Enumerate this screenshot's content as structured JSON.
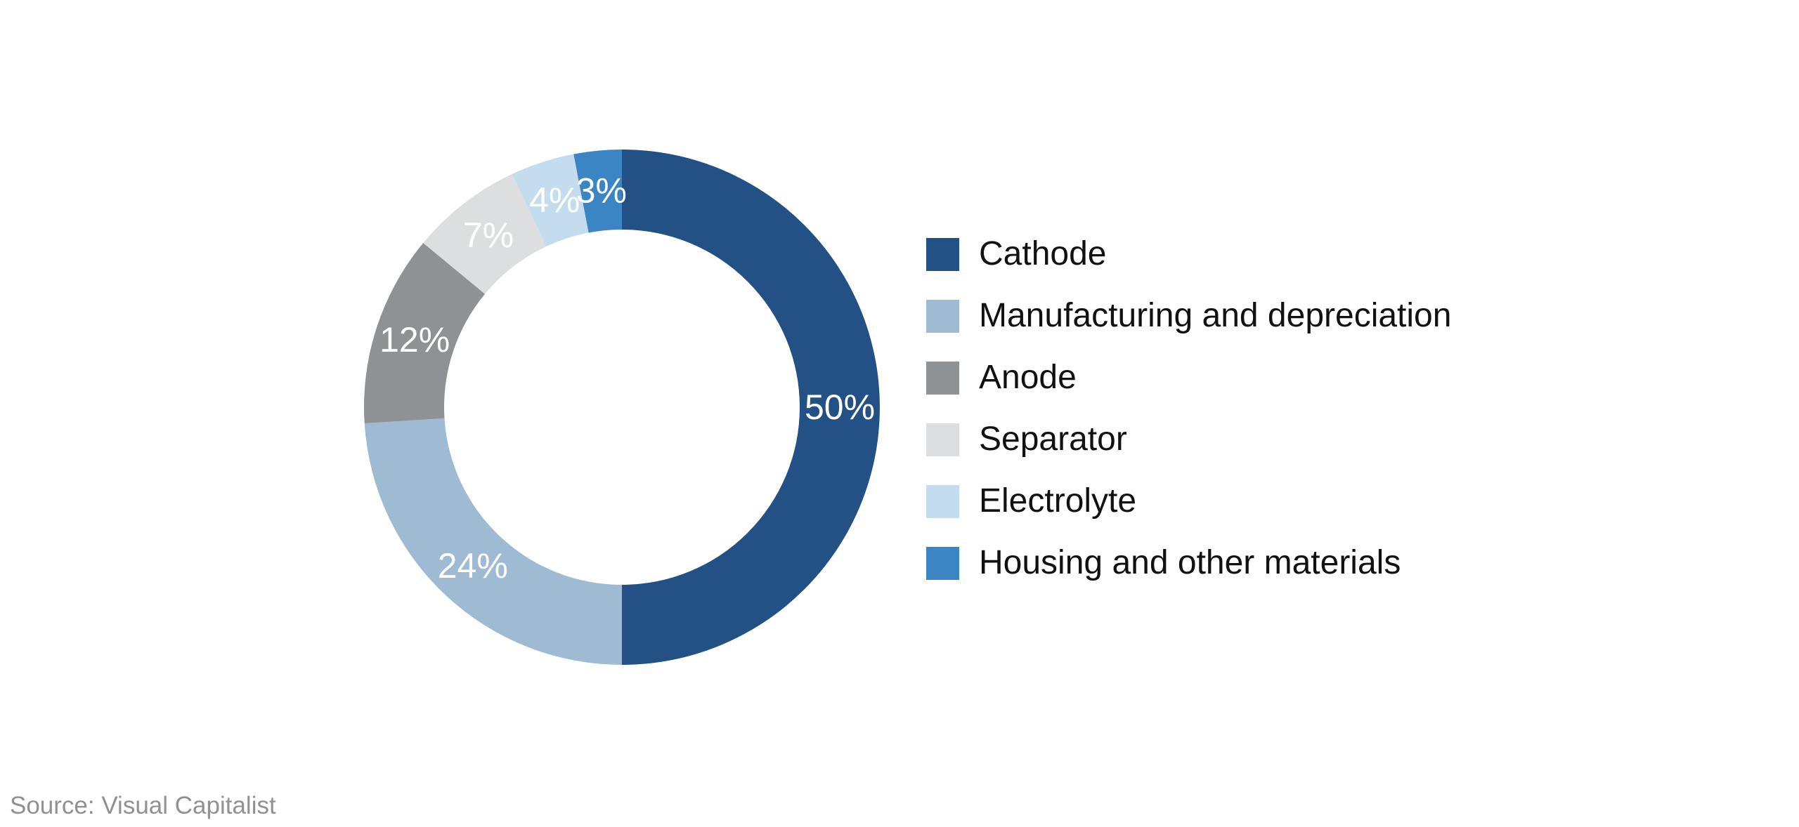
{
  "chart_data": {
    "type": "pie",
    "subtype": "donut",
    "title": "",
    "start_angle_deg": 0,
    "direction": "clockwise",
    "hole_ratio": 0.69,
    "legend_position": "right",
    "value_label_color": "#ffffff",
    "units": "%",
    "segments": [
      {
        "label": "Cathode",
        "value": 50,
        "display": "50%",
        "color": "#235185"
      },
      {
        "label": "Manufacturing and depreciation",
        "value": 24,
        "display": "24%",
        "color": "#9fbbd3"
      },
      {
        "label": "Anode",
        "value": 12,
        "display": "12%",
        "color": "#8f9295"
      },
      {
        "label": "Separator",
        "value": 7,
        "display": "7%",
        "color": "#dcdee0"
      },
      {
        "label": "Electrolyte",
        "value": 4,
        "display": "4%",
        "color": "#c4ddee"
      },
      {
        "label": "Housing and other materials",
        "value": 3,
        "display": "3%",
        "color": "#3c85c4"
      }
    ]
  },
  "source": {
    "text": "Source: Visual Capitalist"
  }
}
